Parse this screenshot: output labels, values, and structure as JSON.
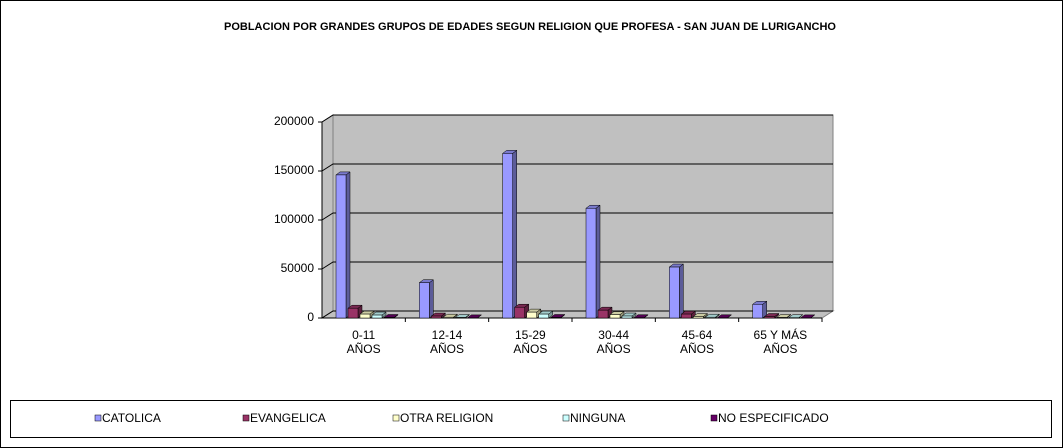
{
  "chart_data": {
    "type": "bar3d",
    "title": "POBLACION POR GRANDES GRUPOS DE EDADES SEGUN RELIGION QUE PROFESA - SAN JUAN DE LURIGANCHO",
    "categories": [
      "0-11 AÑOS",
      "12-14 AÑOS",
      "15-29 AÑOS",
      "30-44 AÑOS",
      "45-64 AÑOS",
      "65 Y MÁS AÑOS"
    ],
    "series": [
      {
        "name": "CATOLICA",
        "color": "#9999ff",
        "values": [
          146000,
          36000,
          168000,
          112000,
          52000,
          14000
        ]
      },
      {
        "name": "EVANGELICA",
        "color": "#993366",
        "values": [
          10000,
          2000,
          11000,
          8000,
          4000,
          1500
        ]
      },
      {
        "name": "OTRA RELIGION",
        "color": "#ffffcc",
        "values": [
          4000,
          800,
          6000,
          3500,
          1500,
          500
        ]
      },
      {
        "name": "NINGUNA",
        "color": "#ccffff",
        "values": [
          3000,
          500,
          4000,
          2000,
          800,
          300
        ]
      },
      {
        "name": "NO ESPECIFICADO",
        "color": "#660066",
        "values": [
          500,
          100,
          500,
          300,
          200,
          100
        ]
      }
    ],
    "ylim": [
      0,
      200000
    ],
    "yticks": [
      0,
      50000,
      100000,
      150000,
      200000
    ],
    "grid": true,
    "legend": "bottom"
  }
}
